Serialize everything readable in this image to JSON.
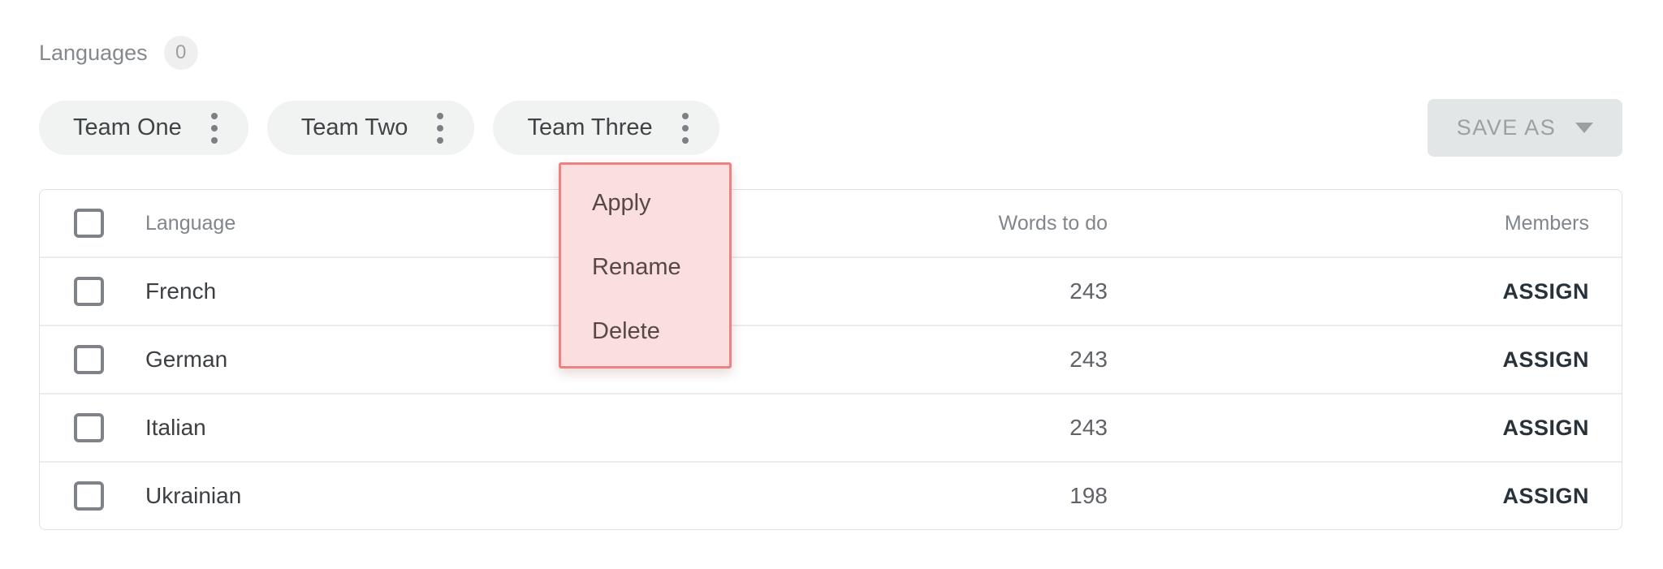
{
  "page": {
    "title": "Languages",
    "count_badge": "0"
  },
  "teams": [
    {
      "label": "Team One"
    },
    {
      "label": "Team Two"
    },
    {
      "label": "Team Three"
    }
  ],
  "toolbar": {
    "save_as_label": "SAVE AS"
  },
  "context_menu": {
    "attached_to": "Team Three",
    "items": [
      {
        "label": "Apply"
      },
      {
        "label": "Rename"
      },
      {
        "label": "Delete"
      }
    ]
  },
  "table": {
    "columns": {
      "language": "Language",
      "words": "Words to do",
      "members": "Members"
    },
    "rows": [
      {
        "language": "French",
        "words": "243",
        "assign_label": "ASSIGN",
        "checked": false
      },
      {
        "language": "German",
        "words": "243",
        "assign_label": "ASSIGN",
        "checked": false
      },
      {
        "language": "Italian",
        "words": "243",
        "assign_label": "ASSIGN",
        "checked": false
      },
      {
        "language": "Ukrainian",
        "words": "198",
        "assign_label": "ASSIGN",
        "checked": false
      }
    ]
  },
  "colors": {
    "chip_bg": "#f1f2f2",
    "save_as_bg": "#e3e6e7",
    "menu_bg": "#fbdede",
    "menu_border": "#ee8181",
    "table_border": "#dfe1e1",
    "header_text": "#80868b",
    "body_text": "#3c4043",
    "assign_text": "#28323a"
  }
}
